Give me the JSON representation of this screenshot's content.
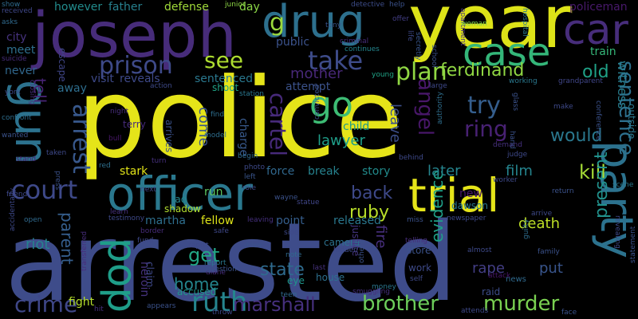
{
  "words": [
    {
      "text": "police",
      "color": "#e5e419"
    },
    {
      "text": "arrested",
      "color": "#3e4c8a"
    },
    {
      "text": "year",
      "color": "#dde318"
    },
    {
      "text": "joseph",
      "color": "#472c7a"
    },
    {
      "text": "officer",
      "color": "#2a788e"
    },
    {
      "text": "trial",
      "color": "#e5e419"
    },
    {
      "text": "drug",
      "color": "#2d708e"
    },
    {
      "text": "gun",
      "color": "#2c728e"
    },
    {
      "text": "party",
      "color": "#2c728e"
    },
    {
      "text": "case",
      "color": "#34b679"
    },
    {
      "text": "car",
      "color": "#472d7b"
    },
    {
      "text": "pop",
      "color": "#1f9e89"
    },
    {
      "text": "go",
      "color": "#3dbc74"
    },
    {
      "text": "ruth",
      "color": "#25858e"
    },
    {
      "text": "prison",
      "color": "#3e4a89"
    },
    {
      "text": "take",
      "color": "#3e4c8a"
    },
    {
      "text": "court",
      "color": "#3e4989"
    },
    {
      "text": "arrest",
      "color": "#38588c"
    },
    {
      "text": "plan",
      "color": "#90d743"
    },
    {
      "text": "try",
      "color": "#355e8d"
    },
    {
      "text": "ring",
      "color": "#482173"
    },
    {
      "text": "marshall",
      "color": "#46307e"
    },
    {
      "text": "brother",
      "color": "#6ccd5a"
    },
    {
      "text": "murder",
      "color": "#7ad151"
    },
    {
      "text": "crime",
      "color": "#3f4788"
    },
    {
      "text": "see",
      "color": "#addc30"
    },
    {
      "text": "cartel",
      "color": "#472a7a"
    },
    {
      "text": "angel",
      "color": "#481769"
    },
    {
      "text": "ferdinand",
      "color": "#90d743"
    },
    {
      "text": "sentence",
      "color": "#2d708e"
    },
    {
      "text": "would",
      "color": "#2a788e"
    },
    {
      "text": "kill",
      "color": "#a5db36"
    },
    {
      "text": "get",
      "color": "#22a785"
    },
    {
      "text": "home",
      "color": "#24868e"
    },
    {
      "text": "state",
      "color": "#2f6b8e"
    },
    {
      "text": "back",
      "color": "#3e4989"
    },
    {
      "text": "ruby",
      "color": "#b8de29"
    },
    {
      "text": "present",
      "color": "#21918c"
    },
    {
      "text": "witness",
      "color": "#287d8e"
    },
    {
      "text": "evidence",
      "color": "#1fa088"
    },
    {
      "text": "fire",
      "color": "#472f7d"
    },
    {
      "text": "parent",
      "color": "#355e8d"
    },
    {
      "text": "lawyer",
      "color": "#1f9e89"
    },
    {
      "text": "mother",
      "color": "#482878"
    },
    {
      "text": "old",
      "color": "#1fa187"
    },
    {
      "text": "put",
      "color": "#39558c"
    },
    {
      "text": "tell",
      "color": "#482475"
    },
    {
      "text": "come",
      "color": "#3a548c"
    },
    {
      "text": "later",
      "color": "#25858e"
    },
    {
      "text": "film",
      "color": "#25848e"
    },
    {
      "text": "death",
      "color": "#bddf26"
    },
    {
      "text": "rape",
      "color": "#433e85"
    },
    {
      "text": "riot",
      "color": "#26828e"
    },
    {
      "text": "fight",
      "color": "#b5de2b"
    },
    {
      "text": "heroin",
      "color": "#46337f"
    },
    {
      "text": "g",
      "color": "#9bd93c"
    },
    {
      "text": "leave",
      "color": "#3c4f8a"
    },
    {
      "text": "visit",
      "color": "#3e4989"
    },
    {
      "text": "reveals",
      "color": "#3e4989"
    },
    {
      "text": "sentenced",
      "color": "#2a788e"
    },
    {
      "text": "attempt",
      "color": "#3b528b"
    },
    {
      "text": "away",
      "color": "#2e6e8e"
    },
    {
      "text": "stark",
      "color": "#e2e418"
    },
    {
      "text": "force",
      "color": "#31688e"
    },
    {
      "text": "break",
      "color": "#26828e"
    },
    {
      "text": "story",
      "color": "#228c8d"
    },
    {
      "text": "run",
      "color": "#5ec962"
    },
    {
      "text": "fellow",
      "color": "#dde318"
    },
    {
      "text": "martha",
      "color": "#2e6f8e"
    },
    {
      "text": "point",
      "color": "#355e8d"
    },
    {
      "text": "released",
      "color": "#2a778e"
    },
    {
      "text": "new",
      "color": "#48196b"
    },
    {
      "text": "dawson",
      "color": "#2a788e"
    },
    {
      "text": "child",
      "color": "#1f9a8a"
    },
    {
      "text": "charge",
      "color": "#38598c"
    },
    {
      "text": "however",
      "color": "#228c8d"
    },
    {
      "text": "father",
      "color": "#27808e"
    },
    {
      "text": "defense",
      "color": "#a0da39"
    },
    {
      "text": "day",
      "color": "#8bd646"
    },
    {
      "text": "policeman",
      "color": "#48196b"
    },
    {
      "text": "city",
      "color": "#46327e"
    },
    {
      "text": "meet",
      "color": "#2e6f8e"
    },
    {
      "text": "public",
      "color": "#3b528b"
    },
    {
      "text": "train",
      "color": "#35b779"
    },
    {
      "text": "never",
      "color": "#30678d"
    },
    {
      "text": "escape",
      "color": "#404688"
    },
    {
      "text": "terry",
      "color": "#472c7a"
    },
    {
      "text": "lao",
      "color": "#24878e"
    },
    {
      "text": "shadow",
      "color": "#b0dd2f"
    },
    {
      "text": "claim",
      "color": "#3e4989"
    },
    {
      "text": "accused",
      "color": "#1f988b"
    },
    {
      "text": "arrives",
      "color": "#3b528b"
    },
    {
      "text": "shoot",
      "color": "#20a386"
    },
    {
      "text": "eye",
      "color": "#1f958b"
    },
    {
      "text": "house",
      "color": "#2d708e"
    },
    {
      "text": "camera",
      "color": "#2c718e"
    },
    {
      "text": "justice",
      "color": "#453581"
    },
    {
      "text": "store",
      "color": "#3b528b"
    },
    {
      "text": "work",
      "color": "#3e4a89"
    },
    {
      "text": "raid",
      "color": "#3d4d8a"
    },
    {
      "text": "news",
      "color": "#306a8e"
    }
  ],
  "small_words": [
    {
      "text": "show",
      "color": "#2f6b8e"
    },
    {
      "text": "received",
      "color": "#3f4889"
    },
    {
      "text": "asks",
      "color": "#306a8e"
    },
    {
      "text": "junior",
      "color": "#8ed645"
    },
    {
      "text": "detective",
      "color": "#3d4d8a"
    },
    {
      "text": "help",
      "color": "#3b528b"
    },
    {
      "text": "offer",
      "color": "#433e85"
    },
    {
      "text": "tony",
      "color": "#39558c"
    },
    {
      "text": "criminal",
      "color": "#472d7b"
    },
    {
      "text": "continues",
      "color": "#24868e"
    },
    {
      "text": "apartment",
      "color": "#46307e"
    },
    {
      "text": "woman",
      "color": "#7fd34e"
    },
    {
      "text": "hospital",
      "color": "#2a788e"
    },
    {
      "text": "life",
      "color": "#3e4989"
    },
    {
      "text": "secretly",
      "color": "#39568c"
    },
    {
      "text": "school",
      "color": "#3b528b"
    },
    {
      "text": "grandparent",
      "color": "#404688"
    },
    {
      "text": "suicide",
      "color": "#472d7b"
    },
    {
      "text": "closing",
      "color": "#46327e"
    },
    {
      "text": "york",
      "color": "#3e4989"
    },
    {
      "text": "confront",
      "color": "#2e6e8e"
    },
    {
      "text": "young",
      "color": "#20a386"
    },
    {
      "text": "station",
      "color": "#2a778e"
    },
    {
      "text": "action",
      "color": "#3e4a89"
    },
    {
      "text": "night",
      "color": "#472d7b"
    },
    {
      "text": "bull",
      "color": "#481769"
    },
    {
      "text": "wanted",
      "color": "#3b528b"
    },
    {
      "text": "taken",
      "color": "#3e4989"
    },
    {
      "text": "stand",
      "color": "#481f70"
    },
    {
      "text": "friend",
      "color": "#3e4989"
    },
    {
      "text": "press",
      "color": "#3b528b"
    },
    {
      "text": "red",
      "color": "#2e6f8e"
    },
    {
      "text": "next",
      "color": "#3f4788"
    },
    {
      "text": "find",
      "color": "#2e6e8e"
    },
    {
      "text": "model",
      "color": "#2e6e8e"
    },
    {
      "text": "turn",
      "color": "#46307e"
    },
    {
      "text": "begin",
      "color": "#306a8e"
    },
    {
      "text": "photo",
      "color": "#3e4a89"
    },
    {
      "text": "left",
      "color": "#39558c"
    },
    {
      "text": "role",
      "color": "#3e4989"
    },
    {
      "text": "wayne",
      "color": "#3b528b"
    },
    {
      "text": "statue",
      "color": "#404688"
    },
    {
      "text": "leaving",
      "color": "#46307e"
    },
    {
      "text": "learn",
      "color": "#46327e"
    },
    {
      "text": "testimony",
      "color": "#3e4989"
    },
    {
      "text": "open",
      "color": "#306a8e"
    },
    {
      "text": "border",
      "color": "#472d7b"
    },
    {
      "text": "safe",
      "color": "#3f4889"
    },
    {
      "text": "rapist",
      "color": "#3e4989"
    },
    {
      "text": "report",
      "color": "#2a788e"
    },
    {
      "text": "diane",
      "color": "#472d7b"
    },
    {
      "text": "question",
      "color": "#3b528b"
    },
    {
      "text": "fund",
      "color": "#3e4989"
    },
    {
      "text": "drive",
      "color": "#3b528b"
    },
    {
      "text": "side",
      "color": "#3e4989"
    },
    {
      "text": "note",
      "color": "#306a8e"
    },
    {
      "text": "last",
      "color": "#46327e"
    },
    {
      "text": "hidden",
      "color": "#3e4989"
    },
    {
      "text": "others",
      "color": "#3b528b"
    },
    {
      "text": "smuggling",
      "color": "#46307e"
    },
    {
      "text": "miss",
      "color": "#3b528b"
    },
    {
      "text": "newspaper",
      "color": "#3e4989"
    },
    {
      "text": "telling",
      "color": "#472d7b"
    },
    {
      "text": "almost",
      "color": "#3e4989"
    },
    {
      "text": "guilty",
      "color": "#2e6e8e"
    },
    {
      "text": "family",
      "color": "#3b528b"
    },
    {
      "text": "attack",
      "color": "#481769"
    },
    {
      "text": "self",
      "color": "#3e4989"
    },
    {
      "text": "money",
      "color": "#2a778e"
    },
    {
      "text": "attends",
      "color": "#3e4989"
    },
    {
      "text": "face",
      "color": "#3b528b"
    },
    {
      "text": "teen",
      "color": "#306a8e"
    },
    {
      "text": "throw",
      "color": "#3e4989"
    },
    {
      "text": "hit",
      "color": "#46307e"
    },
    {
      "text": "appears",
      "color": "#3b528b"
    },
    {
      "text": "accidentally",
      "color": "#3e4989"
    },
    {
      "text": "transferred",
      "color": "#472d7b"
    },
    {
      "text": "worker",
      "color": "#3e4989"
    },
    {
      "text": "scene",
      "color": "#2a788e"
    },
    {
      "text": "return",
      "color": "#3b528b"
    },
    {
      "text": "judge",
      "color": "#3e4989"
    },
    {
      "text": "demand",
      "color": "#46307e"
    },
    {
      "text": "hand",
      "color": "#3b528b"
    },
    {
      "text": "make",
      "color": "#3e4989"
    },
    {
      "text": "glass",
      "color": "#3b528b"
    },
    {
      "text": "working",
      "color": "#2a788e"
    },
    {
      "text": "large",
      "color": "#3e4989"
    },
    {
      "text": "convicted",
      "color": "#3b528b"
    },
    {
      "text": "authority",
      "color": "#2e6e8e"
    },
    {
      "text": "behind",
      "color": "#3e4989"
    },
    {
      "text": "conference",
      "color": "#3b528b"
    },
    {
      "text": "revealing",
      "color": "#3e4989"
    },
    {
      "text": "statement",
      "color": "#3b528b"
    },
    {
      "text": "outside",
      "color": "#2a788e"
    },
    {
      "text": "arrive",
      "color": "#3e4989"
    }
  ]
}
